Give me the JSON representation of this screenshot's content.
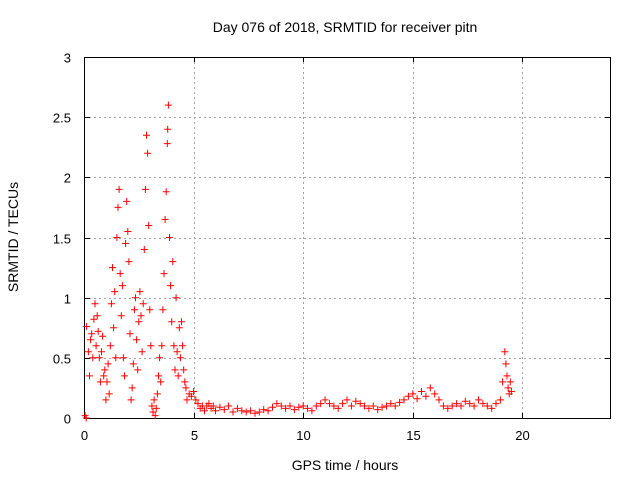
{
  "chart_data": {
    "type": "scatter",
    "title": "Day 076 of 2018, SRMTID for receiver pitn",
    "xlabel": "GPS time / hours",
    "ylabel": "SRMTID / TECUs",
    "xlim": [
      0,
      24
    ],
    "ylim": [
      0,
      3
    ],
    "xticks": [
      0,
      5,
      10,
      15,
      20
    ],
    "yticks": [
      0,
      0.5,
      1,
      1.5,
      2,
      2.5,
      3
    ],
    "xtick_labels": [
      "0",
      "5",
      "10",
      "15",
      "20"
    ],
    "ytick_labels": [
      "0",
      "0.5",
      "1",
      "1.5",
      "2",
      "2.5",
      "3"
    ],
    "grid": true,
    "marker": "+",
    "color": "#ff0000",
    "series": [
      {
        "name": "pitn",
        "points": [
          [
            0.05,
            0.02
          ],
          [
            0.1,
            0.0
          ],
          [
            0.12,
            0.76
          ],
          [
            0.2,
            0.55
          ],
          [
            0.25,
            0.35
          ],
          [
            0.3,
            0.65
          ],
          [
            0.35,
            0.7
          ],
          [
            0.4,
            0.5
          ],
          [
            0.45,
            0.82
          ],
          [
            0.5,
            0.95
          ],
          [
            0.55,
            0.6
          ],
          [
            0.6,
            0.85
          ],
          [
            0.65,
            0.72
          ],
          [
            0.7,
            0.5
          ],
          [
            0.75,
            0.3
          ],
          [
            0.8,
            0.55
          ],
          [
            0.85,
            0.68
          ],
          [
            0.9,
            0.35
          ],
          [
            0.95,
            0.4
          ],
          [
            1.0,
            0.15
          ],
          [
            1.05,
            0.3
          ],
          [
            1.1,
            0.45
          ],
          [
            1.15,
            0.2
          ],
          [
            1.2,
            0.6
          ],
          [
            1.25,
            0.95
          ],
          [
            1.3,
            1.25
          ],
          [
            1.35,
            0.75
          ],
          [
            1.4,
            1.05
          ],
          [
            1.45,
            0.5
          ],
          [
            1.5,
            1.5
          ],
          [
            1.55,
            1.75
          ],
          [
            1.6,
            1.9
          ],
          [
            1.65,
            1.2
          ],
          [
            1.7,
            0.85
          ],
          [
            1.75,
            1.1
          ],
          [
            1.8,
            0.5
          ],
          [
            1.85,
            0.35
          ],
          [
            1.9,
            1.45
          ],
          [
            1.95,
            1.8
          ],
          [
            2.0,
            1.55
          ],
          [
            2.05,
            1.3
          ],
          [
            2.1,
            0.7
          ],
          [
            2.15,
            0.15
          ],
          [
            2.2,
            0.25
          ],
          [
            2.25,
            0.45
          ],
          [
            2.3,
            0.9
          ],
          [
            2.35,
            1.0
          ],
          [
            2.4,
            0.65
          ],
          [
            2.45,
            0.4
          ],
          [
            2.5,
            0.8
          ],
          [
            2.55,
            1.05
          ],
          [
            2.6,
            0.85
          ],
          [
            2.65,
            0.55
          ],
          [
            2.7,
            0.95
          ],
          [
            2.75,
            1.4
          ],
          [
            2.8,
            1.9
          ],
          [
            2.85,
            2.35
          ],
          [
            2.9,
            2.2
          ],
          [
            2.95,
            1.6
          ],
          [
            3.0,
            0.9
          ],
          [
            3.05,
            0.6
          ],
          [
            3.1,
            0.1
          ],
          [
            3.15,
            0.05
          ],
          [
            3.2,
            0.15
          ],
          [
            3.25,
            0.02
          ],
          [
            3.3,
            0.08
          ],
          [
            3.35,
            0.2
          ],
          [
            3.4,
            0.35
          ],
          [
            3.45,
            0.5
          ],
          [
            3.5,
            0.3
          ],
          [
            3.55,
            0.6
          ],
          [
            3.6,
            0.9
          ],
          [
            3.65,
            1.2
          ],
          [
            3.7,
            1.65
          ],
          [
            3.75,
            1.88
          ],
          [
            3.8,
            2.28
          ],
          [
            3.82,
            2.4
          ],
          [
            3.85,
            2.6
          ],
          [
            3.9,
            1.5
          ],
          [
            3.95,
            1.1
          ],
          [
            4.0,
            0.8
          ],
          [
            4.05,
            1.3
          ],
          [
            4.1,
            0.6
          ],
          [
            4.15,
            0.4
          ],
          [
            4.2,
            1.0
          ],
          [
            4.25,
            0.55
          ],
          [
            4.3,
            0.35
          ],
          [
            4.35,
            0.75
          ],
          [
            4.4,
            0.5
          ],
          [
            4.45,
            0.8
          ],
          [
            4.5,
            0.6
          ],
          [
            4.55,
            0.4
          ],
          [
            4.6,
            0.3
          ],
          [
            4.65,
            0.25
          ],
          [
            4.7,
            0.15
          ],
          [
            4.8,
            0.2
          ],
          [
            4.9,
            0.18
          ],
          [
            5.0,
            0.22
          ],
          [
            5.1,
            0.15
          ],
          [
            5.2,
            0.12
          ],
          [
            5.3,
            0.08
          ],
          [
            5.4,
            0.1
          ],
          [
            5.5,
            0.06
          ],
          [
            5.6,
            0.1
          ],
          [
            5.7,
            0.12
          ],
          [
            5.8,
            0.08
          ],
          [
            5.9,
            0.1
          ],
          [
            6.0,
            0.06
          ],
          [
            6.2,
            0.09
          ],
          [
            6.4,
            0.07
          ],
          [
            6.6,
            0.1
          ],
          [
            6.8,
            0.05
          ],
          [
            7.0,
            0.08
          ],
          [
            7.2,
            0.06
          ],
          [
            7.4,
            0.05
          ],
          [
            7.6,
            0.06
          ],
          [
            7.8,
            0.04
          ],
          [
            8.0,
            0.05
          ],
          [
            8.2,
            0.07
          ],
          [
            8.4,
            0.06
          ],
          [
            8.6,
            0.09
          ],
          [
            8.8,
            0.12
          ],
          [
            9.0,
            0.1
          ],
          [
            9.2,
            0.08
          ],
          [
            9.4,
            0.1
          ],
          [
            9.6,
            0.07
          ],
          [
            9.8,
            0.09
          ],
          [
            10.0,
            0.1
          ],
          [
            10.2,
            0.08
          ],
          [
            10.4,
            0.06
          ],
          [
            10.6,
            0.1
          ],
          [
            10.8,
            0.12
          ],
          [
            11.0,
            0.15
          ],
          [
            11.2,
            0.12
          ],
          [
            11.4,
            0.1
          ],
          [
            11.6,
            0.08
          ],
          [
            11.8,
            0.12
          ],
          [
            12.0,
            0.15
          ],
          [
            12.2,
            0.1
          ],
          [
            12.4,
            0.14
          ],
          [
            12.6,
            0.12
          ],
          [
            12.8,
            0.1
          ],
          [
            13.0,
            0.08
          ],
          [
            13.2,
            0.1
          ],
          [
            13.4,
            0.07
          ],
          [
            13.6,
            0.09
          ],
          [
            13.8,
            0.1
          ],
          [
            14.0,
            0.12
          ],
          [
            14.2,
            0.1
          ],
          [
            14.4,
            0.13
          ],
          [
            14.6,
            0.15
          ],
          [
            14.8,
            0.18
          ],
          [
            15.0,
            0.2
          ],
          [
            15.2,
            0.16
          ],
          [
            15.4,
            0.22
          ],
          [
            15.6,
            0.18
          ],
          [
            15.8,
            0.25
          ],
          [
            16.0,
            0.2
          ],
          [
            16.2,
            0.15
          ],
          [
            16.4,
            0.1
          ],
          [
            16.6,
            0.08
          ],
          [
            16.8,
            0.1
          ],
          [
            17.0,
            0.12
          ],
          [
            17.2,
            0.1
          ],
          [
            17.4,
            0.14
          ],
          [
            17.6,
            0.12
          ],
          [
            17.8,
            0.1
          ],
          [
            18.0,
            0.15
          ],
          [
            18.2,
            0.12
          ],
          [
            18.4,
            0.1
          ],
          [
            18.6,
            0.08
          ],
          [
            18.8,
            0.12
          ],
          [
            19.0,
            0.15
          ],
          [
            19.1,
            0.3
          ],
          [
            19.2,
            0.55
          ],
          [
            19.25,
            0.45
          ],
          [
            19.3,
            0.35
          ],
          [
            19.35,
            0.25
          ],
          [
            19.4,
            0.2
          ],
          [
            19.45,
            0.3
          ],
          [
            19.5,
            0.22
          ]
        ]
      }
    ]
  }
}
